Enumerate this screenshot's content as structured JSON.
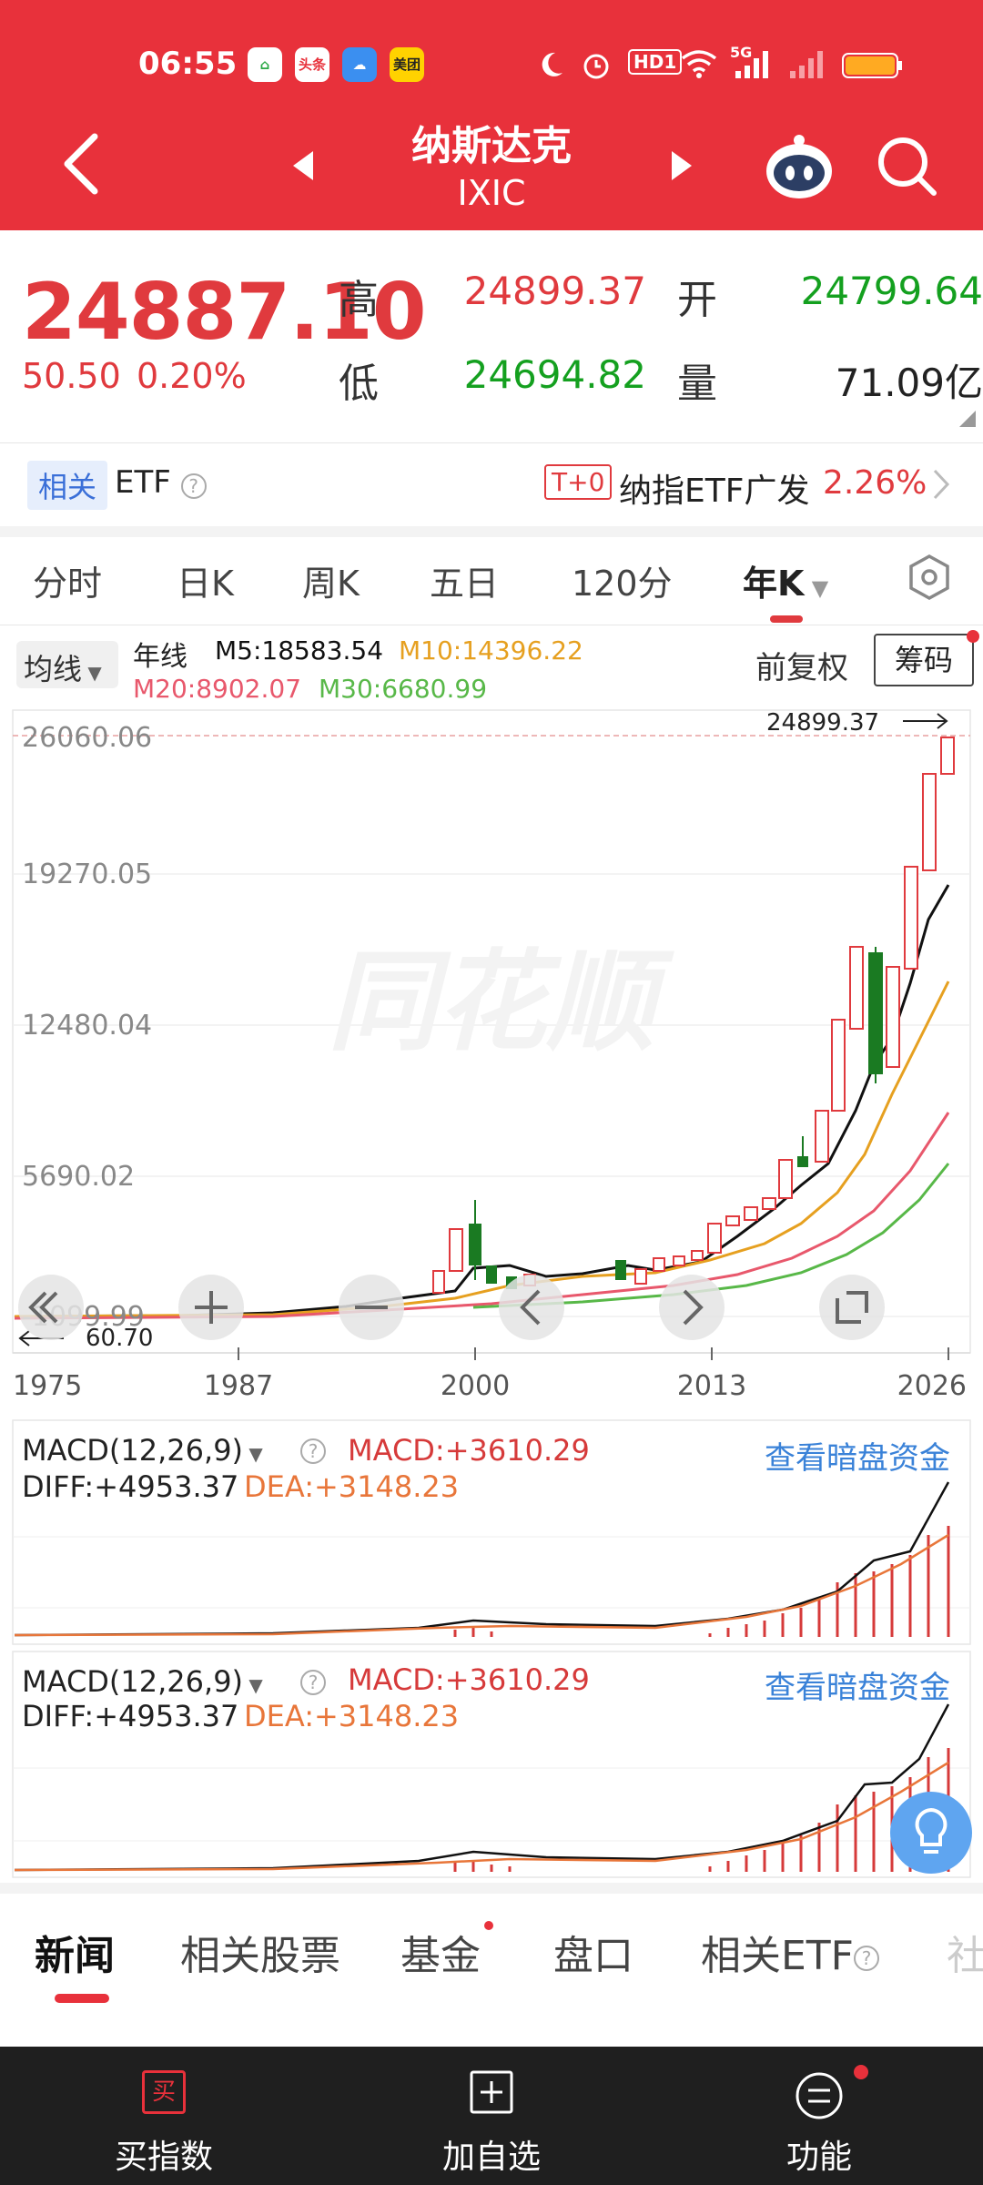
{
  "status_bar": {
    "time": "06:55",
    "apps": [
      {
        "icon": "home-app-icon",
        "label": "",
        "bg": "#ffffff",
        "fg": "#2aa845"
      },
      {
        "icon": "toutiao-icon",
        "label": "头条",
        "bg": "#ffffff",
        "fg": "#e8313b"
      },
      {
        "icon": "weather-icon",
        "label": "",
        "bg": "#3b8ff0",
        "fg": "#ffffff"
      },
      {
        "icon": "meituan-icon",
        "label": "美团",
        "bg": "#ffd200",
        "fg": "#222222"
      }
    ],
    "hd_label": "HD1",
    "net_label": "5G"
  },
  "header": {
    "title": "纳斯达克",
    "code": "IXIC"
  },
  "quote": {
    "price": "24887.10",
    "change": "50.50",
    "change_pct": "0.20%",
    "high_label": "高",
    "high": "24899.37",
    "open_label": "开",
    "open": "24799.64",
    "low_label": "低",
    "low": "24694.82",
    "volume_label": "量",
    "volume": "71.09亿"
  },
  "etf_row": {
    "tag": "相关",
    "label": "ETF",
    "t0": "T+0",
    "name": "纳指ETF广发",
    "pct": "2.26%"
  },
  "period_tabs": [
    "分时",
    "日K",
    "周K",
    "五日",
    "120分",
    "年K"
  ],
  "active_period": "年K",
  "legend": {
    "ma_selector": "均线",
    "period_label": "年线",
    "m5": "M5:18583.54",
    "m10": "M10:14396.22",
    "m20": "M20:8902.07",
    "m30": "M30:6680.99",
    "adjust": "前复权",
    "chips": "筹码"
  },
  "chart_data": {
    "type": "candlestick",
    "x_ticks": [
      "1975",
      "1987",
      "2000",
      "2013",
      "2026"
    ],
    "y_ticks": [
      "26060.06",
      "19270.05",
      "12480.04",
      "5690.02",
      "-1099.99"
    ],
    "high_marker": "24899.37",
    "low_marker": "60.70",
    "watermark": "同花顺",
    "colors": {
      "up": "#e03a3e",
      "down": "#1a7a22",
      "m5": "#111111",
      "m10": "#e6a020",
      "m20": "#e8586c",
      "m30": "#58b848"
    }
  },
  "macd_panels": [
    {
      "selector": "MACD(12,26,9)",
      "macd": "MACD:+3610.29",
      "diff": "DIFF:+4953.37",
      "dea": "DEA:+3148.23",
      "link": "查看暗盘资金"
    },
    {
      "selector": "MACD(12,26,9)",
      "macd": "MACD:+3610.29",
      "diff": "DIFF:+4953.37",
      "dea": "DEA:+3148.23",
      "link": "查看暗盘资金"
    }
  ],
  "bottom_tabs": [
    "新闻",
    "相关股票",
    "基金",
    "盘口",
    "相关ETF",
    "社"
  ],
  "bottom_bar": {
    "buy": "买指数",
    "buy_icon": "买",
    "add": "加自选",
    "func": "功能"
  }
}
